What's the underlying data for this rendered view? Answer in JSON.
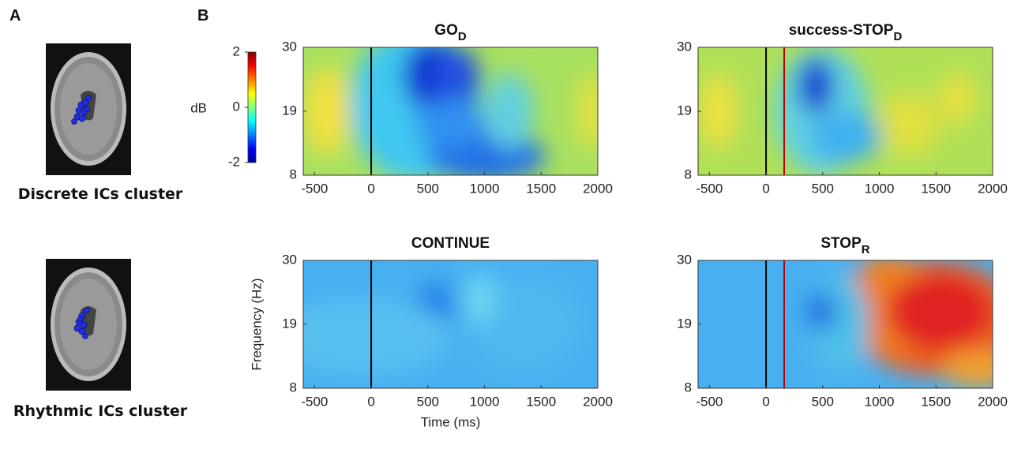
{
  "panel_labels": [
    "A",
    "B"
  ],
  "brains": [
    {
      "caption": "Discrete ICs cluster"
    },
    {
      "caption": "Rhythmic ICs cluster"
    }
  ],
  "colorbar": {
    "label": "dB",
    "lim": [
      -2,
      2
    ],
    "ticks": [
      2,
      0,
      -2
    ]
  },
  "x_label": "Time (ms)",
  "y_label": "Frequency (Hz)",
  "plots": [
    {
      "title": "GO",
      "title_sub": "D",
      "xlim": [
        -600,
        2000
      ],
      "xticks": [
        -500,
        0,
        500,
        1000,
        1500,
        2000
      ],
      "ylim": [
        8,
        30
      ],
      "yticks": [
        8,
        19,
        30
      ],
      "markers": [
        {
          "x": 0,
          "color": "#000000"
        }
      ]
    },
    {
      "title": "success-STOP",
      "title_sub": "D",
      "xlim": [
        -600,
        2000
      ],
      "xticks": [
        -500,
        0,
        500,
        1000,
        1500,
        2000
      ],
      "ylim": [
        8,
        30
      ],
      "yticks": [
        8,
        19,
        30
      ],
      "markers": [
        {
          "x": 0,
          "color": "#000000"
        },
        {
          "x": 160,
          "color": "#c00000"
        }
      ]
    },
    {
      "title": "CONTINUE",
      "xlim": [
        -600,
        2000
      ],
      "xticks": [
        -500,
        0,
        500,
        1000,
        1500,
        2000
      ],
      "ylim": [
        8,
        30
      ],
      "yticks": [
        8,
        19,
        30
      ],
      "markers": [
        {
          "x": 0,
          "color": "#000000"
        }
      ]
    },
    {
      "title": "STOP",
      "title_sub": "R",
      "xlim": [
        -600,
        2000
      ],
      "xticks": [
        -500,
        0,
        500,
        1000,
        1500,
        2000
      ],
      "ylim": [
        8,
        30
      ],
      "yticks": [
        8,
        19,
        30
      ],
      "markers": [
        {
          "x": 0,
          "color": "#000000"
        },
        {
          "x": 160,
          "color": "#c00000"
        }
      ]
    }
  ]
}
